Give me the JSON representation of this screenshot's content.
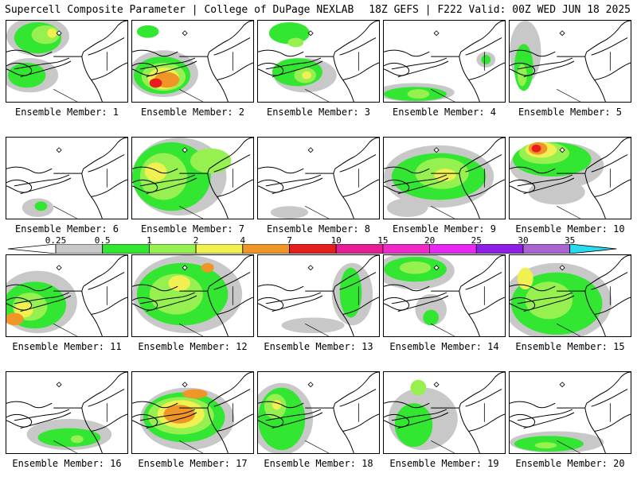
{
  "header": {
    "left": "Supercell Composite Parameter | College of DuPage NEXLAB",
    "right": "18Z GEFS | F222 Valid: 00Z WED JUN 18 2025"
  },
  "colorbar": {
    "ticks": [
      "0.25",
      "0.5",
      "1",
      "2",
      "4",
      "7",
      "10",
      "15",
      "20",
      "25",
      "30",
      "35"
    ],
    "colors": [
      "#c8c8c8",
      "#32e632",
      "#96f050",
      "#f0f050",
      "#f09628",
      "#e61e1e",
      "#e61e96",
      "#f028c8",
      "#e628f0",
      "#8c1ee6",
      "#aa64d2",
      "#28dcf0"
    ]
  },
  "panels": [
    {
      "label": "Ensemble Member: 1"
    },
    {
      "label": "Ensemble Member: 2"
    },
    {
      "label": "Ensemble Member: 3"
    },
    {
      "label": "Ensemble Member: 4"
    },
    {
      "label": "Ensemble Member: 5"
    },
    {
      "label": "Ensemble Member: 6"
    },
    {
      "label": "Ensemble Member: 7"
    },
    {
      "label": "Ensemble Member: 8"
    },
    {
      "label": "Ensemble Member: 9"
    },
    {
      "label": "Ensemble Member: 10"
    },
    {
      "label": "Ensemble Member: 11"
    },
    {
      "label": "Ensemble Member: 12"
    },
    {
      "label": "Ensemble Member: 13"
    },
    {
      "label": "Ensemble Member: 14"
    },
    {
      "label": "Ensemble Member: 15"
    },
    {
      "label": "Ensemble Member: 16"
    },
    {
      "label": "Ensemble Member: 17"
    },
    {
      "label": "Ensemble Member: 18"
    },
    {
      "label": "Ensemble Member: 19"
    },
    {
      "label": "Ensemble Member: 20"
    }
  ]
}
